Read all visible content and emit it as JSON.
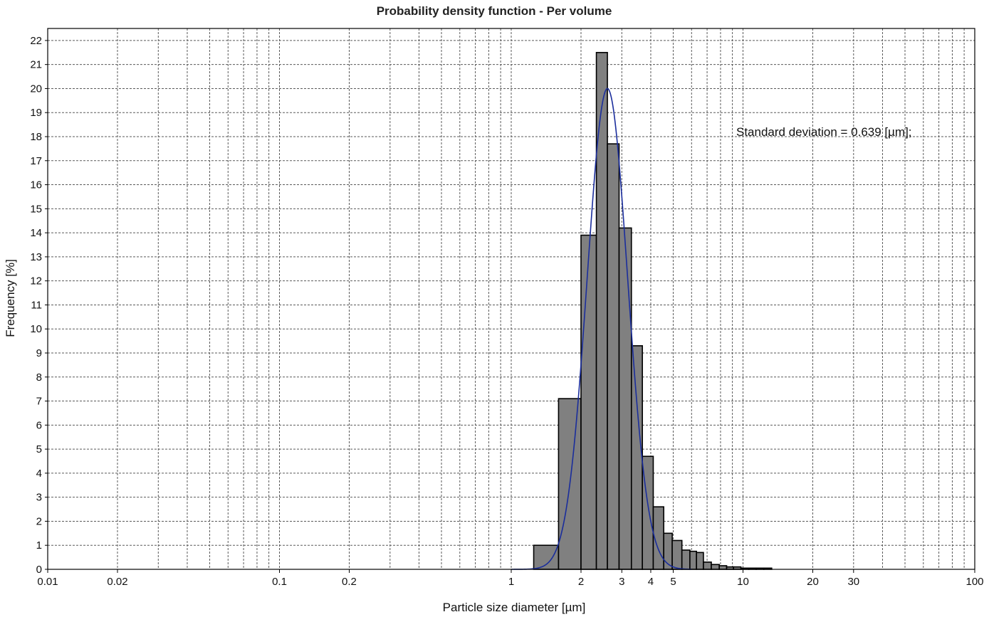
{
  "chart_data": {
    "type": "bar",
    "title": "Probability density function - Per volume",
    "xlabel": "Particle size diameter [µm]",
    "ylabel": "Frequency [%]",
    "x_scale": "log",
    "xlim": [
      0.01,
      100
    ],
    "ylim": [
      0,
      22.5
    ],
    "grid": true,
    "x_ticks": [
      {
        "value": 0.01,
        "label": "0.01"
      },
      {
        "value": 0.02,
        "label": "0.02"
      },
      {
        "value": 0.1,
        "label": "0.1"
      },
      {
        "value": 0.2,
        "label": "0.2"
      },
      {
        "value": 1,
        "label": "1"
      },
      {
        "value": 2,
        "label": "2"
      },
      {
        "value": 3,
        "label": "3"
      },
      {
        "value": 4,
        "label": "4"
      },
      {
        "value": 5,
        "label": "5"
      },
      {
        "value": 10,
        "label": "10"
      },
      {
        "value": 20,
        "label": "20"
      },
      {
        "value": 30,
        "label": "30"
      },
      {
        "value": 100,
        "label": "100"
      }
    ],
    "y_ticks": [
      0,
      1,
      2,
      3,
      4,
      5,
      6,
      7,
      8,
      9,
      10,
      11,
      12,
      13,
      14,
      15,
      16,
      17,
      18,
      19,
      20,
      21,
      22
    ],
    "bins": [
      {
        "x0": 1.25,
        "x1": 1.6,
        "value": 1.0
      },
      {
        "x0": 1.6,
        "x1": 2.0,
        "value": 7.1
      },
      {
        "x0": 2.0,
        "x1": 2.33,
        "value": 13.9
      },
      {
        "x0": 2.33,
        "x1": 2.6,
        "value": 21.5
      },
      {
        "x0": 2.6,
        "x1": 2.92,
        "value": 17.7
      },
      {
        "x0": 2.92,
        "x1": 3.3,
        "value": 14.2
      },
      {
        "x0": 3.3,
        "x1": 3.68,
        "value": 9.3
      },
      {
        "x0": 3.68,
        "x1": 4.1,
        "value": 4.7
      },
      {
        "x0": 4.1,
        "x1": 4.55,
        "value": 2.6
      },
      {
        "x0": 4.55,
        "x1": 4.95,
        "value": 1.5
      },
      {
        "x0": 4.95,
        "x1": 5.45,
        "value": 1.2
      },
      {
        "x0": 5.45,
        "x1": 5.9,
        "value": 0.8
      },
      {
        "x0": 5.9,
        "x1": 6.3,
        "value": 0.75
      },
      {
        "x0": 6.3,
        "x1": 6.75,
        "value": 0.7
      },
      {
        "x0": 6.75,
        "x1": 7.3,
        "value": 0.3
      },
      {
        "x0": 7.3,
        "x1": 7.9,
        "value": 0.2
      },
      {
        "x0": 7.9,
        "x1": 8.5,
        "value": 0.15
      },
      {
        "x0": 8.5,
        "x1": 9.1,
        "value": 0.1
      },
      {
        "x0": 9.1,
        "x1": 9.8,
        "value": 0.1
      },
      {
        "x0": 9.8,
        "x1": 10.6,
        "value": 0.05
      },
      {
        "x0": 10.6,
        "x1": 11.4,
        "value": 0.05
      },
      {
        "x0": 11.4,
        "x1": 12.3,
        "value": 0.05
      },
      {
        "x0": 12.3,
        "x1": 13.3,
        "value": 0.05
      }
    ],
    "fit_curve": {
      "peak_x": 2.6,
      "peak_y": 20.0,
      "sigma_log10": 0.0872,
      "x_range": [
        1.0,
        6.0
      ]
    },
    "annotation": "Standard deviation = 0.639 [µm];",
    "colors": {
      "bar_fill": "#808080",
      "bar_stroke": "#000000",
      "curve": "#1a2d9c",
      "grid": "#5a5a5a",
      "frame": "#000000"
    }
  }
}
